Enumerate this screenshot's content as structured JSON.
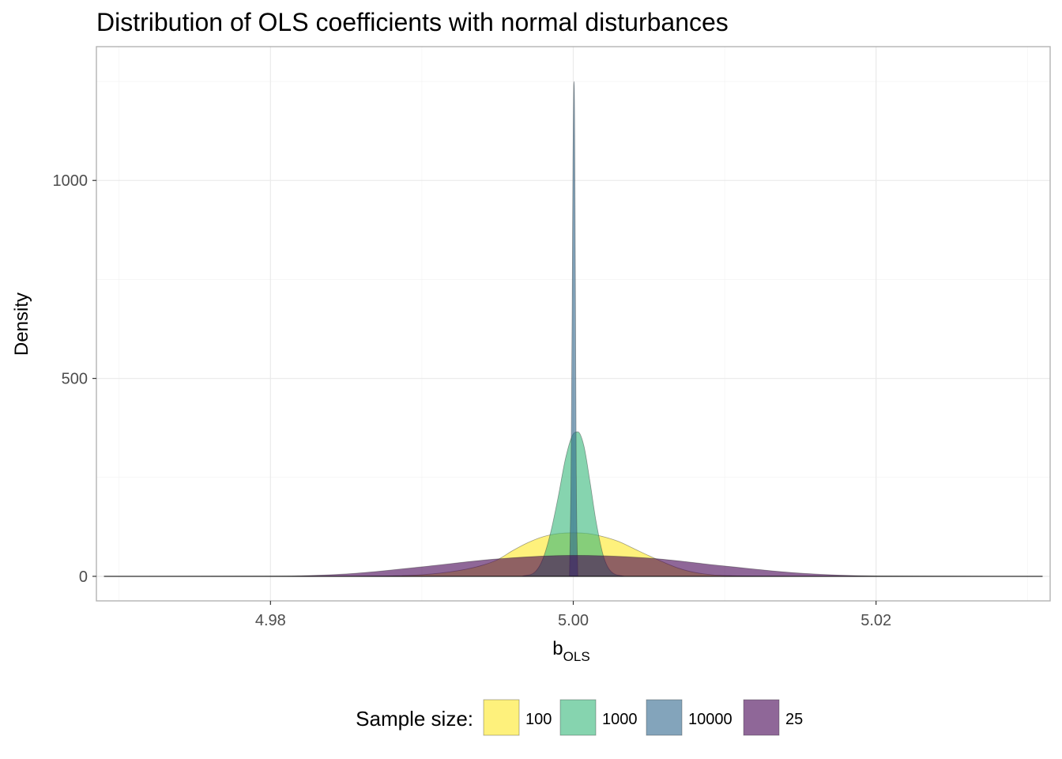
{
  "chart_data": {
    "type": "area",
    "title": "Distribution of OLS coefficients with normal disturbances",
    "xlabel_main": "b",
    "xlabel_sub": "OLS",
    "ylabel": "Density",
    "xlim": [
      4.9685,
      5.0315
    ],
    "ylim": [
      -62,
      1338
    ],
    "x_ticks": [
      4.98,
      5.0,
      5.02
    ],
    "x_tick_labels": [
      "4.98",
      "5.00",
      "5.02"
    ],
    "y_ticks": [
      0,
      500,
      1000
    ],
    "y_tick_labels": [
      "0",
      "500",
      "1000"
    ],
    "grid": true,
    "legend_position": "bottom",
    "legend_title": "Sample size:",
    "series": [
      {
        "name": "100",
        "color": "#FDE725",
        "x": [
          4.9855,
          4.99,
          4.9925,
          4.994,
          4.995,
          4.996,
          4.997,
          4.998,
          4.999,
          5.0,
          5.001,
          5.002,
          5.003,
          5.004,
          5.005,
          5.006,
          5.007,
          5.008,
          5.01,
          5.0155
        ],
        "y": [
          0,
          4,
          15,
          28,
          42,
          65,
          85,
          100,
          108,
          110,
          108,
          100,
          88,
          70,
          52,
          35,
          20,
          10,
          2,
          0
        ]
      },
      {
        "name": "1000",
        "color": "#35B779",
        "x": [
          4.9966,
          4.9975,
          4.998,
          4.9985,
          4.999,
          4.9995,
          5.0,
          5.0003,
          5.0007,
          5.0011,
          5.0015,
          5.002,
          5.0025,
          5.0034
        ],
        "y": [
          0,
          12,
          45,
          110,
          200,
          300,
          360,
          365,
          330,
          240,
          140,
          50,
          12,
          0
        ]
      },
      {
        "name": "10000",
        "color": "#31688E",
        "x": [
          4.99975,
          4.99985,
          4.99993,
          4.99998,
          5.00003,
          5.00006,
          5.00009,
          5.00014,
          5.0002,
          5.0003
        ],
        "y": [
          0,
          250,
          700,
          1050,
          1235,
          1250,
          1150,
          750,
          250,
          0
        ]
      },
      {
        "name": "25",
        "color": "#440154",
        "x": [
          4.969,
          4.98,
          4.985,
          4.99,
          4.995,
          5.0,
          5.005,
          5.01,
          5.015,
          5.02,
          5.031
        ],
        "y": [
          0,
          0.5,
          6,
          24,
          44,
          53,
          46,
          26,
          8,
          1,
          0
        ]
      }
    ]
  },
  "legend": {
    "title": "Sample size:",
    "items": [
      {
        "label": "100",
        "color": "#FDE725"
      },
      {
        "label": "1000",
        "color": "#35B779"
      },
      {
        "label": "10000",
        "color": "#31688E"
      },
      {
        "label": "25",
        "color": "#440154"
      }
    ]
  }
}
